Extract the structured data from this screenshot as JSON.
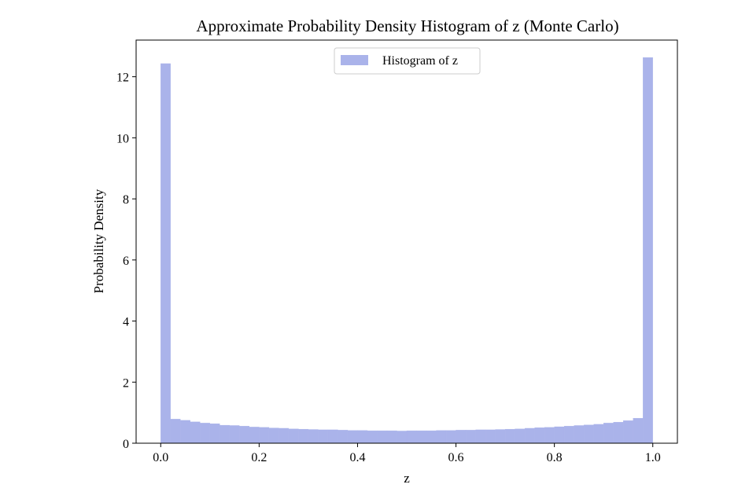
{
  "chart_data": {
    "type": "bar",
    "title": "Approximate Probability Density Histogram of z (Monte Carlo)",
    "xlabel": "z",
    "ylabel": "Probability Density",
    "xlim": [
      -0.05,
      1.05
    ],
    "ylim": [
      0,
      13.2
    ],
    "xticks": [
      0.0,
      0.2,
      0.4,
      0.6,
      0.8,
      1.0
    ],
    "xtick_labels": [
      "0.0",
      "0.2",
      "0.4",
      "0.6",
      "0.8",
      "1.0"
    ],
    "yticks": [
      0,
      2,
      4,
      6,
      8,
      10,
      12
    ],
    "ytick_labels": [
      "0",
      "2",
      "4",
      "6",
      "8",
      "10",
      "12"
    ],
    "grid": false,
    "legend": {
      "position": "top-center",
      "entries": [
        "Histogram of z"
      ]
    },
    "bin_range": [
      0,
      1
    ],
    "bin_count": 50,
    "series": [
      {
        "name": "Histogram of z",
        "color": "#aab3ea",
        "values": [
          12.43,
          0.79,
          0.75,
          0.7,
          0.66,
          0.64,
          0.59,
          0.58,
          0.56,
          0.53,
          0.52,
          0.5,
          0.49,
          0.47,
          0.46,
          0.45,
          0.44,
          0.44,
          0.43,
          0.42,
          0.42,
          0.41,
          0.41,
          0.41,
          0.4,
          0.41,
          0.41,
          0.41,
          0.42,
          0.42,
          0.43,
          0.43,
          0.44,
          0.44,
          0.45,
          0.46,
          0.47,
          0.49,
          0.51,
          0.52,
          0.54,
          0.56,
          0.58,
          0.6,
          0.62,
          0.66,
          0.69,
          0.74,
          0.82,
          12.63
        ]
      }
    ]
  }
}
